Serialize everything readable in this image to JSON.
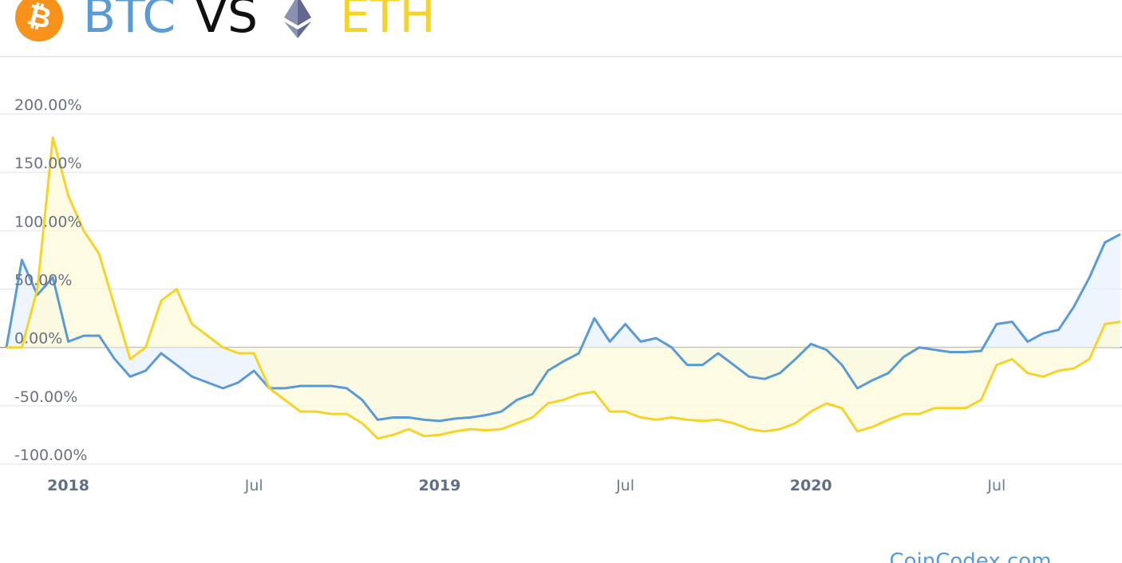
{
  "chart_data": {
    "type": "line",
    "title": "VS",
    "watermark": "CoinCodex.com",
    "categories": [
      null,
      null,
      null,
      null,
      "2018",
      null,
      null,
      null,
      null,
      null,
      null,
      null,
      null,
      null,
      null,
      null,
      "Jul",
      null,
      null,
      null,
      null,
      null,
      null,
      null,
      null,
      null,
      null,
      null,
      "2019",
      null,
      null,
      null,
      null,
      null,
      null,
      null,
      null,
      null,
      null,
      null,
      "Jul",
      null,
      null,
      null,
      null,
      null,
      null,
      null,
      null,
      null,
      null,
      null,
      "2020",
      null,
      null,
      null,
      null,
      null,
      null,
      null,
      null,
      null,
      null,
      null,
      "Jul",
      null,
      null,
      null,
      null,
      null,
      null,
      null,
      null
    ],
    "series": [
      {
        "name": "BTC",
        "color": "#5b9bd5",
        "fill": "#e9f2fb",
        "values": [
          0,
          75,
          45,
          60,
          5,
          10,
          10,
          -10,
          -25,
          -20,
          -5,
          -15,
          -25,
          -30,
          -35,
          -30,
          -20,
          -35,
          -35,
          -33,
          -33,
          -33,
          -35,
          -45,
          -62,
          -60,
          -60,
          -62,
          -63,
          -61,
          -60,
          -58,
          -55,
          -45,
          -40,
          -20,
          -12,
          -5,
          25,
          5,
          20,
          5,
          8,
          0,
          -15,
          -15,
          -5,
          -15,
          -25,
          -27,
          -22,
          -10,
          3,
          -2,
          -15,
          -35,
          -28,
          -22,
          -8,
          0,
          -2,
          -4,
          -4,
          -3,
          20,
          22,
          5,
          12,
          15,
          35,
          60,
          90,
          97
        ]
      },
      {
        "name": "ETH",
        "color": "#f5d42a",
        "fill": "#fdf9da",
        "values": [
          0,
          0,
          50,
          180,
          130,
          100,
          80,
          35,
          -10,
          0,
          40,
          50,
          20,
          10,
          0,
          -5,
          -5,
          -35,
          -45,
          -55,
          -55,
          -57,
          -57,
          -65,
          -78,
          -75,
          -70,
          -76,
          -75,
          -72,
          -70,
          -71,
          -70,
          -65,
          -60,
          -48,
          -45,
          -40,
          -38,
          -55,
          -55,
          -60,
          -62,
          -60,
          -62,
          -63,
          -62,
          -65,
          -70,
          -72,
          -70,
          -65,
          -55,
          -48,
          -52,
          -72,
          -68,
          -62,
          -57,
          -57,
          -52,
          -52,
          -52,
          -45,
          -15,
          -10,
          -22,
          -25,
          -20,
          -18,
          -10,
          20,
          22
        ]
      }
    ],
    "ylim": [
      -100,
      200
    ],
    "yticks": [
      {
        "value": 200,
        "label": "200.00%"
      },
      {
        "value": 150,
        "label": "150.00%"
      },
      {
        "value": 100,
        "label": "100.00%"
      },
      {
        "value": 50,
        "label": "50.00%"
      },
      {
        "value": 0,
        "label": "0.00%"
      },
      {
        "value": -50,
        "label": "-50.00%"
      },
      {
        "value": -100,
        "label": "-100.00%"
      }
    ],
    "grid": true
  }
}
